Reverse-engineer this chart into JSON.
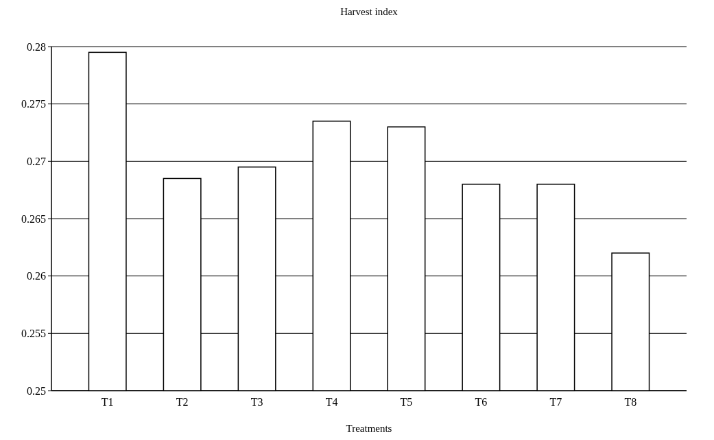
{
  "chart_data": {
    "type": "bar",
    "title": "Harvest index",
    "xlabel": "Treatments",
    "categories": [
      "T1",
      "T2",
      "T3",
      "T4",
      "T5",
      "T6",
      "T7",
      "T8"
    ],
    "values": [
      0.2795,
      0.2685,
      0.2695,
      0.2735,
      0.273,
      0.268,
      0.268,
      0.262
    ],
    "color": "#ffffff",
    "ylim": [
      0.25,
      0.28
    ],
    "yticks": [
      {
        "value": 0.25,
        "label": "0.25"
      },
      {
        "value": 0.255,
        "label": "0.255"
      },
      {
        "value": 0.26,
        "label": "0.26"
      },
      {
        "value": 0.265,
        "label": "0.265"
      },
      {
        "value": 0.27,
        "label": "0.27"
      },
      {
        "value": 0.275,
        "label": "0.275"
      },
      {
        "value": 0.28,
        "label": "0.28"
      }
    ],
    "grid": "y"
  }
}
